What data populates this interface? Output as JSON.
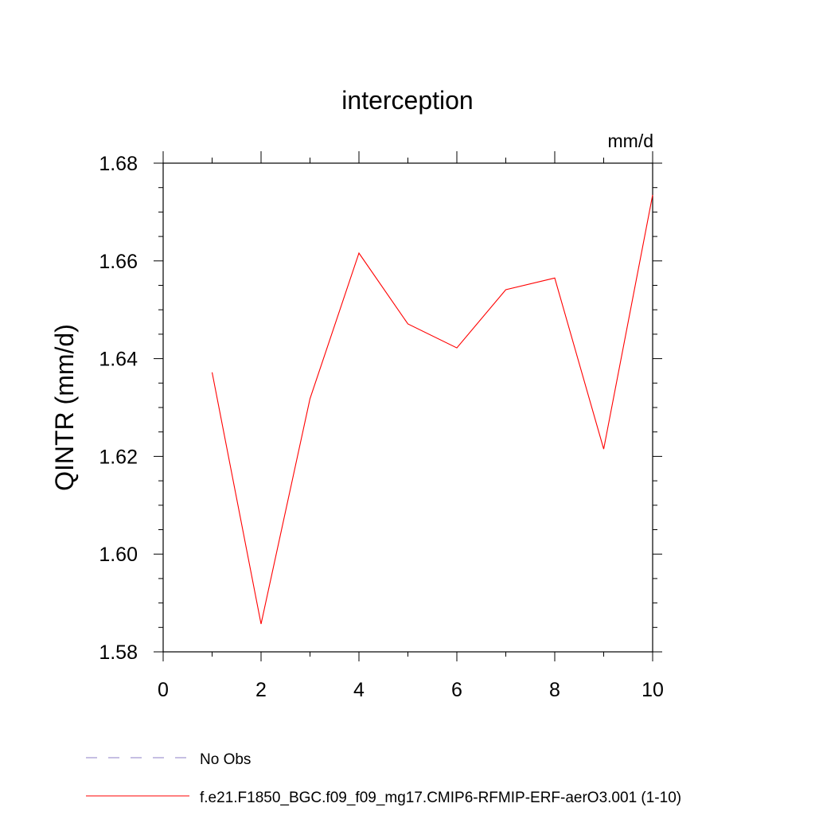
{
  "chart_data": {
    "type": "line",
    "title": "interception",
    "units_label": "mm/d",
    "ylabel": "QINTR  (mm/d)",
    "xlabel": "",
    "xlim": [
      0,
      10
    ],
    "ylim": [
      1.58,
      1.68
    ],
    "x_ticks": [
      0,
      2,
      4,
      6,
      8,
      10
    ],
    "x_tick_labels": [
      "0",
      "2",
      "4",
      "6",
      "8",
      "10"
    ],
    "y_ticks": [
      1.58,
      1.6,
      1.62,
      1.64,
      1.66,
      1.68
    ],
    "y_tick_labels": [
      "1.58",
      "1.60",
      "1.62",
      "1.64",
      "1.66",
      "1.68"
    ],
    "x_minor_step": 1,
    "y_minor_step": 0.005,
    "grid": false,
    "series": [
      {
        "name": "f.e21.F1850_BGC.f09_f09_mg17.CMIP6-RFMIP-ERF-aerO3.001 (1-10)",
        "color": "#ff0000",
        "x": [
          1,
          2,
          3,
          4,
          5,
          6,
          7,
          8,
          9,
          10
        ],
        "values": [
          1.6372,
          1.5857,
          1.6318,
          1.6616,
          1.6471,
          1.6422,
          1.6541,
          1.6565,
          1.6215,
          1.6735
        ]
      }
    ],
    "legend": {
      "placement": "bottom-left",
      "entries": [
        {
          "label": "No Obs",
          "color": "#8c7fc7",
          "style": "dashed"
        },
        {
          "label": "f.e21.F1850_BGC.f09_f09_mg17.CMIP6-RFMIP-ERF-aerO3.001 (1-10)",
          "color": "#ff0000",
          "style": "solid"
        }
      ]
    }
  }
}
